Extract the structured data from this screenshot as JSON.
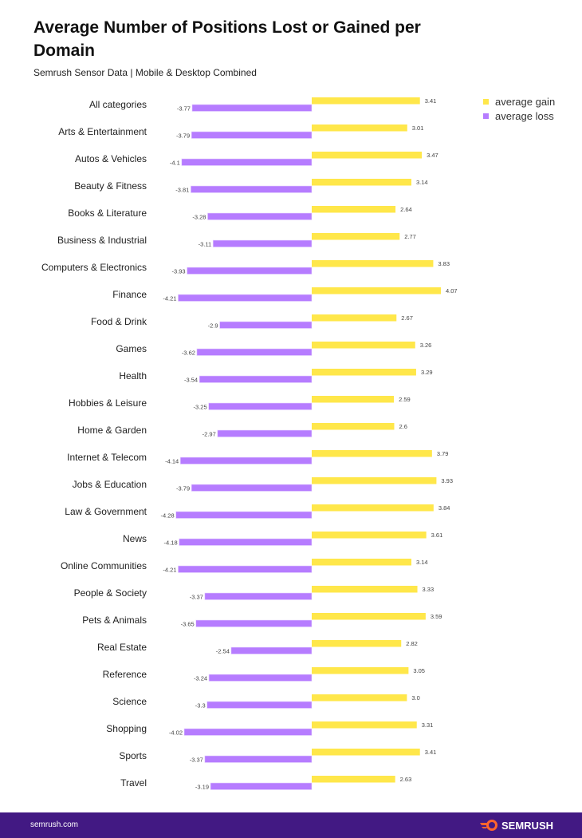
{
  "header": {
    "title": "Average Number of Positions Lost or Gained per Domain",
    "subtitle": "Semrush Sensor Data | Mobile & Desktop Combined"
  },
  "footer": {
    "url": "semrush.com",
    "logo_text": "SEMRUSH"
  },
  "colors": {
    "gain": "#FFE74A",
    "loss": "#B67CFF",
    "footer_bg": "#421983",
    "logo_accent": "#FF642D"
  },
  "chart_data": {
    "type": "bar",
    "orientation": "horizontal",
    "categories": [
      "All categories",
      "Arts & Entertainment",
      "Autos & Vehicles",
      "Beauty & Fitness",
      "Books & Literature",
      "Business & Industrial",
      "Computers & Electronics",
      "Finance",
      "Food & Drink",
      "Games",
      "Health",
      "Hobbies & Leisure",
      "Home & Garden",
      "Internet & Telecom",
      "Jobs & Education",
      "Law & Government",
      "News",
      "Online Communities",
      "People & Society",
      "Pets & Animals",
      "Real Estate",
      "Reference",
      "Science",
      "Shopping",
      "Sports",
      "Travel"
    ],
    "series": [
      {
        "name": "average gain",
        "color": "#FFE74A",
        "values": [
          3.41,
          3.01,
          3.47,
          3.14,
          2.64,
          2.77,
          3.83,
          4.07,
          2.67,
          3.26,
          3.29,
          2.59,
          2.6,
          3.79,
          3.93,
          3.84,
          3.61,
          3.14,
          3.33,
          3.59,
          2.82,
          3.05,
          3.0,
          3.31,
          3.41,
          2.63
        ],
        "labels": [
          "3.41",
          "3.01",
          "3.47",
          "3.14",
          "2.64",
          "2.77",
          "3.83",
          "4.07",
          "2.67",
          "3.26",
          "3.29",
          "2.59",
          "2.6",
          "3.79",
          "3.93",
          "3.84",
          "3.61",
          "3.14",
          "3.33",
          "3.59",
          "2.82",
          "3.05",
          "3.0",
          "3.31",
          "3.41",
          "2.63"
        ]
      },
      {
        "name": "average loss",
        "color": "#B67CFF",
        "values": [
          -3.77,
          -3.79,
          -4.1,
          -3.81,
          -3.28,
          -3.11,
          -3.93,
          -4.21,
          -2.9,
          -3.62,
          -3.54,
          -3.25,
          -2.97,
          -4.14,
          -3.79,
          -4.28,
          -4.18,
          -4.21,
          -3.37,
          -3.65,
          -2.54,
          -3.24,
          -3.3,
          -4.02,
          -3.37,
          -3.19
        ],
        "labels": [
          "-3.77",
          "-3.79",
          "-4.1",
          "-3.81",
          "-3.28",
          "-3.11",
          "-3.93",
          "-4.21",
          "-2.9",
          "-3.62",
          "-3.54",
          "-3.25",
          "-2.97",
          "-4.14",
          "-3.79",
          "-4.28",
          "-4.18",
          "-4.21",
          "-3.37",
          "-3.65",
          "-2.54",
          "-3.24",
          "-3.3",
          "-4.02",
          "-3.37",
          "-3.19"
        ]
      }
    ],
    "legend": "top-right",
    "grid": false,
    "axes_visible": false
  }
}
